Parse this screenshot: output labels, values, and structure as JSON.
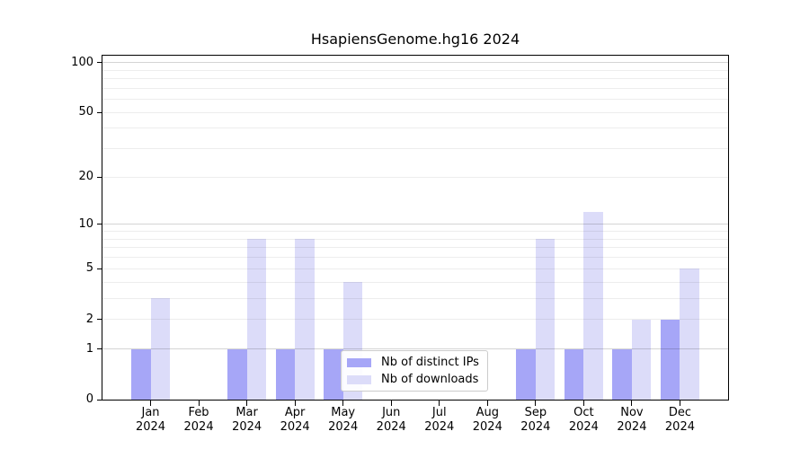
{
  "chart_data": {
    "type": "bar",
    "title": "HsapiensGenome.hg16 2024",
    "x_labels": [
      [
        "Jan",
        "2024"
      ],
      [
        "Feb",
        "2024"
      ],
      [
        "Mar",
        "2024"
      ],
      [
        "Apr",
        "2024"
      ],
      [
        "May",
        "2024"
      ],
      [
        "Jun",
        "2024"
      ],
      [
        "Jul",
        "2024"
      ],
      [
        "Aug",
        "2024"
      ],
      [
        "Sep",
        "2024"
      ],
      [
        "Oct",
        "2024"
      ],
      [
        "Nov",
        "2024"
      ],
      [
        "Dec",
        "2024"
      ]
    ],
    "series": [
      {
        "name": "Nb of distinct IPs",
        "color": "#a6a6f7",
        "values": [
          1,
          0,
          1,
          1,
          1,
          0,
          0,
          0,
          1,
          1,
          1,
          2
        ]
      },
      {
        "name": "Nb of downloads",
        "color": "#dcdcf9",
        "values": [
          3,
          0,
          8,
          8,
          4,
          0,
          0,
          0,
          8,
          12,
          2,
          5
        ]
      }
    ],
    "y_scale": "log1p",
    "y_ticks": [
      0,
      1,
      2,
      5,
      10,
      20,
      50,
      100
    ],
    "y_major_gridlines": [
      1,
      10,
      100
    ],
    "y_minor_gridlines": [
      2,
      3,
      4,
      5,
      6,
      7,
      8,
      9,
      20,
      30,
      40,
      50,
      60,
      70,
      80,
      90
    ],
    "y_top": 110,
    "ylim": [
      0,
      110
    ],
    "grid": true,
    "legend_position": "bottom-center",
    "axis_color": "#000000",
    "background_color": "#ffffff"
  }
}
